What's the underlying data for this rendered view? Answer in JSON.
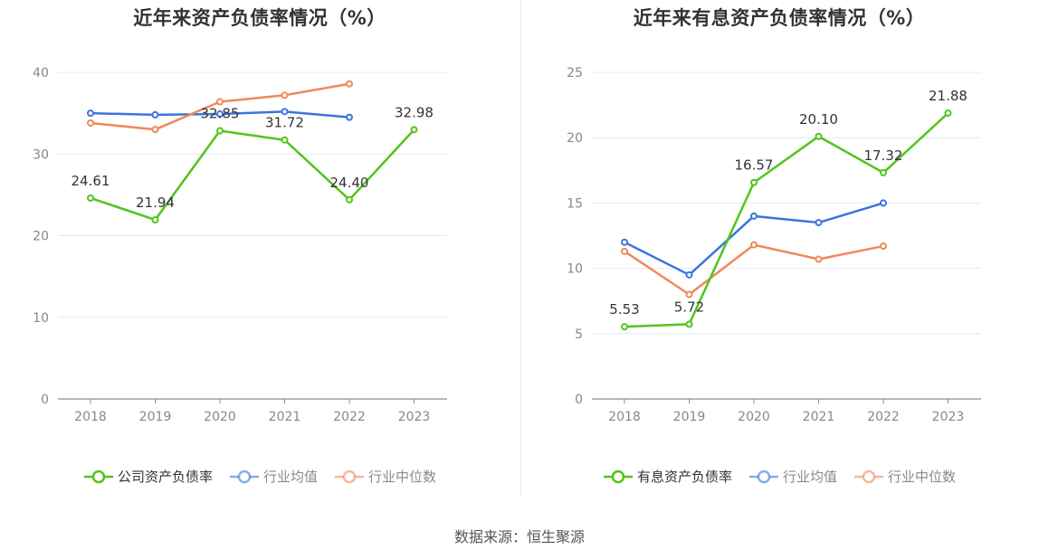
{
  "footer": {
    "source": "数据来源：恒生聚源"
  },
  "chart_data": [
    {
      "type": "line",
      "title": "近年来资产负债率情况（%）",
      "categories": [
        "2018",
        "2019",
        "2020",
        "2021",
        "2022",
        "2023"
      ],
      "ylim": [
        0,
        40
      ],
      "yticks": [
        0,
        10,
        20,
        30,
        40
      ],
      "grid": true,
      "legend_position": "bottom",
      "series": [
        {
          "name": "公司资产负债率",
          "color": "#52c41a",
          "highlight": true,
          "values": [
            24.61,
            21.94,
            32.85,
            31.72,
            24.4,
            32.98
          ],
          "labels": [
            "24.61",
            "21.94",
            "32.85",
            "31.72",
            "24.40",
            "32.98"
          ]
        },
        {
          "name": "行业均值",
          "color": "#3b74e0",
          "highlight": false,
          "values": [
            35.0,
            34.8,
            34.9,
            35.2,
            34.5,
            null
          ]
        },
        {
          "name": "行业中位数",
          "color": "#f0885a",
          "highlight": false,
          "values": [
            33.8,
            33.0,
            36.4,
            37.2,
            38.6,
            null
          ]
        }
      ]
    },
    {
      "type": "line",
      "title": "近年来有息资产负债率情况（%）",
      "categories": [
        "2018",
        "2019",
        "2020",
        "2021",
        "2022",
        "2023"
      ],
      "ylim": [
        0,
        25
      ],
      "yticks": [
        0,
        5,
        10,
        15,
        20,
        25
      ],
      "grid": true,
      "legend_position": "bottom",
      "series": [
        {
          "name": "有息资产负债率",
          "color": "#52c41a",
          "highlight": true,
          "values": [
            5.53,
            5.72,
            16.57,
            20.1,
            17.32,
            21.88
          ],
          "labels": [
            "5.53",
            "5.72",
            "16.57",
            "20.10",
            "17.32",
            "21.88"
          ]
        },
        {
          "name": "行业均值",
          "color": "#3b74e0",
          "highlight": false,
          "values": [
            12.0,
            9.5,
            14.0,
            13.5,
            15.0,
            null
          ]
        },
        {
          "name": "行业中位数",
          "color": "#f0885a",
          "highlight": false,
          "values": [
            11.3,
            8.0,
            11.8,
            10.7,
            11.7,
            null
          ]
        }
      ]
    }
  ]
}
